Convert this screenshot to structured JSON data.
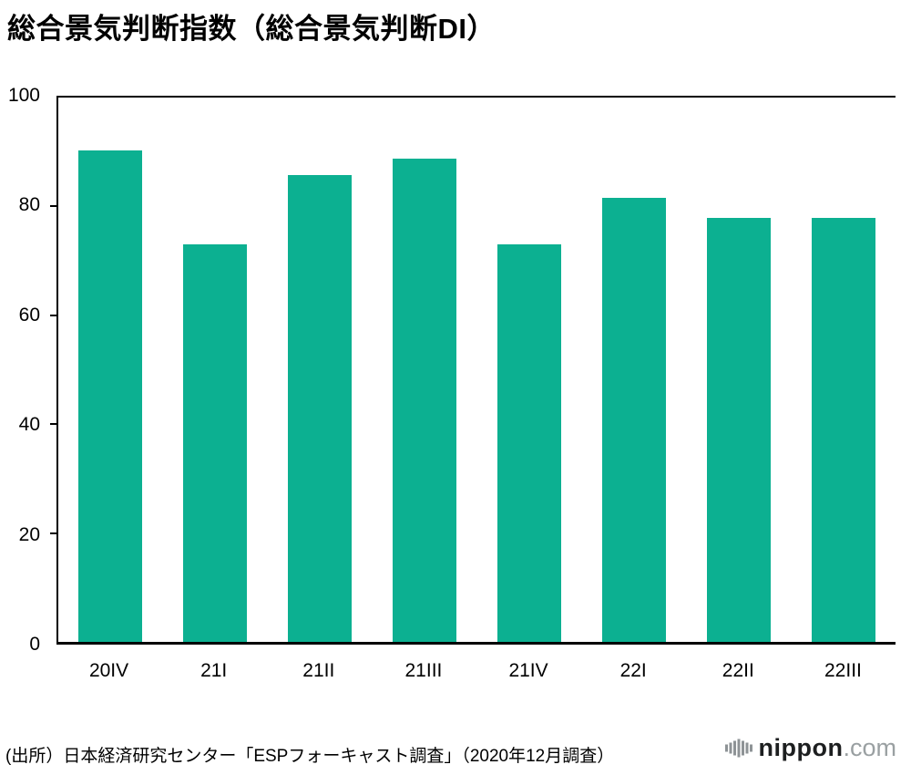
{
  "title": "総合景気判断指数（総合景気判断DI）",
  "source_note": "(出所）日本経済研究センター「ESPフォーキャスト調査」（2020年12月調査）",
  "logo": {
    "name": "nippon",
    "tld": ".com",
    "icon": "audio-bars-icon"
  },
  "colors": {
    "bar": "#0cb091",
    "axis": "#000000",
    "text": "#000000",
    "logo_dark": "#1d1f20",
    "logo_gray": "#9aa0a2"
  },
  "chart_data": {
    "type": "bar",
    "categories": [
      "20IV",
      "21I",
      "21II",
      "21III",
      "21IV",
      "22I",
      "22II",
      "22III"
    ],
    "values": [
      90.3,
      73.0,
      85.8,
      88.8,
      73.0,
      81.5,
      77.9,
      77.9
    ],
    "title": "総合景気判断指数（総合景気判断DI）",
    "xlabel": "",
    "ylabel": "",
    "ylim": [
      0,
      100
    ],
    "yticks": [
      0,
      20,
      40,
      60,
      80,
      100
    ],
    "grid": false,
    "legend": false,
    "bar_color": "#0cb091"
  }
}
